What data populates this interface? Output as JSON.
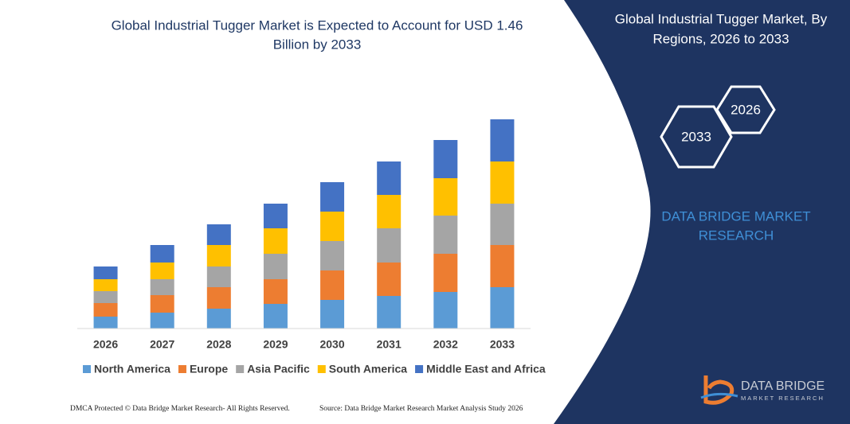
{
  "chart_data": {
    "type": "stacked-bar",
    "title": [
      "Global Industrial Tugger Market is Expected to Account for USD 1.46",
      "Billion by 2033"
    ],
    "categories": [
      "2026",
      "2027",
      "2028",
      "2029",
      "2030",
      "2031",
      "2032",
      "2033"
    ],
    "series": [
      {
        "name": "North America",
        "color": "#5b9bd5",
        "values": [
          15,
          20,
          25,
          31,
          36,
          41,
          46,
          52
        ]
      },
      {
        "name": "Europe",
        "color": "#ed7d31",
        "values": [
          17,
          22,
          27,
          31,
          37,
          42,
          48,
          53
        ]
      },
      {
        "name": "Asia Pacific",
        "color": "#a5a5a5",
        "values": [
          15,
          20,
          26,
          32,
          37,
          43,
          48,
          52
        ]
      },
      {
        "name": "South America",
        "color": "#ffc000",
        "values": [
          15,
          21,
          27,
          32,
          37,
          42,
          47,
          53
        ]
      },
      {
        "name": "Middle East and Africa",
        "color": "#4472c4",
        "values": [
          16,
          22,
          26,
          31,
          37,
          42,
          48,
          53
        ]
      }
    ],
    "ylim": [
      0,
      263
    ]
  },
  "panel": {
    "title": [
      "Global Industrial Tugger Market, By",
      "Regions, 2026 to 2033"
    ],
    "hex_labels": [
      "2026",
      "2033"
    ],
    "brand": [
      "DATA BRIDGE MARKET",
      "RESEARCH"
    ]
  },
  "logo": {
    "name": "DATA BRIDGE",
    "tagline": "MARKET RESEARCH"
  },
  "footer": {
    "left": "DMCA Protected © Data Bridge Market Research- All Rights Reserved.",
    "right": "Source: Data Bridge Market Research Market Analysis Study 2026"
  }
}
